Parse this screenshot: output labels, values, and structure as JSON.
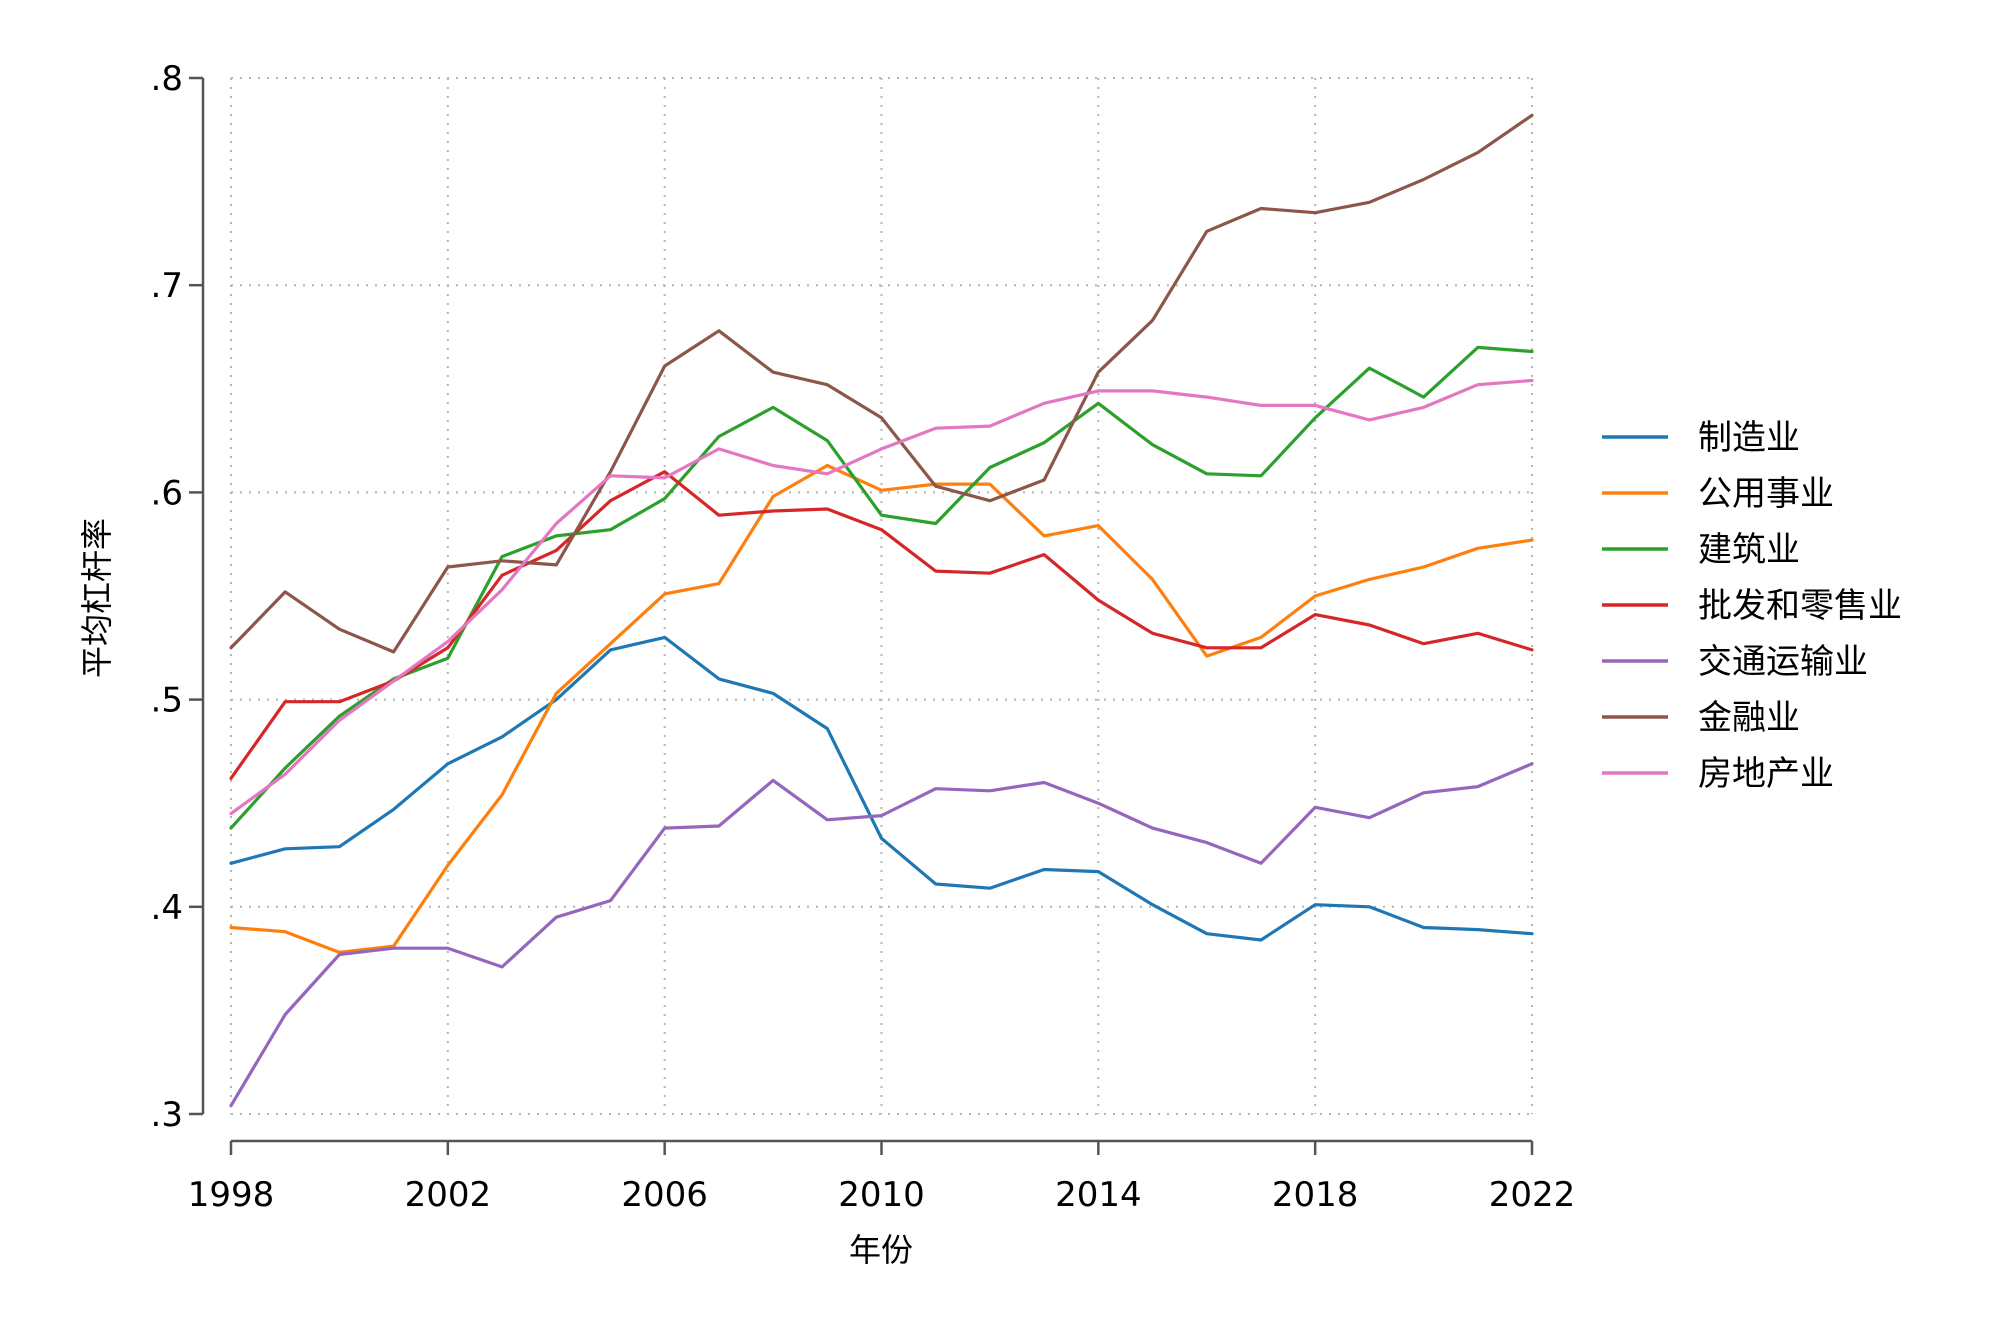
{
  "chart_data": {
    "type": "line",
    "xlabel": "年份",
    "ylabel": "平均杠杆率",
    "xlim": [
      1998,
      2022
    ],
    "ylim": [
      0.3,
      0.8
    ],
    "xticks": [
      1998,
      2002,
      2006,
      2010,
      2014,
      2018,
      2022
    ],
    "xtick_labels": [
      "1998",
      "2002",
      "2006",
      "2010",
      "2014",
      "2018",
      "2022"
    ],
    "yticks": [
      0.3,
      0.4,
      0.5,
      0.6,
      0.7,
      0.8
    ],
    "ytick_labels": [
      ".3",
      ".4",
      ".5",
      ".6",
      ".7",
      ".8"
    ],
    "grid": true,
    "legend_position": "right",
    "x": [
      1998,
      1999,
      2000,
      2001,
      2002,
      2003,
      2004,
      2005,
      2006,
      2007,
      2008,
      2009,
      2010,
      2011,
      2012,
      2013,
      2014,
      2015,
      2016,
      2017,
      2018,
      2019,
      2020,
      2021,
      2022
    ],
    "series": [
      {
        "name": "制造业",
        "color": "#1f77b4",
        "values": [
          0.421,
          0.428,
          0.429,
          0.447,
          0.469,
          0.482,
          0.5,
          0.524,
          0.53,
          0.51,
          0.503,
          0.486,
          0.433,
          0.411,
          0.409,
          0.418,
          0.417,
          0.401,
          0.387,
          0.384,
          0.401,
          0.4,
          0.39,
          0.389,
          0.387
        ]
      },
      {
        "name": "公用事业",
        "color": "#ff7f0e",
        "values": [
          0.39,
          0.388,
          0.378,
          0.381,
          0.42,
          0.454,
          0.503,
          0.527,
          0.551,
          0.556,
          0.598,
          0.613,
          0.601,
          0.604,
          0.604,
          0.579,
          0.584,
          0.558,
          0.521,
          0.53,
          0.55,
          0.558,
          0.564,
          0.573,
          0.577
        ]
      },
      {
        "name": "建筑业",
        "color": "#2ca02c",
        "values": [
          0.438,
          0.467,
          0.492,
          0.51,
          0.52,
          0.569,
          0.579,
          0.582,
          0.597,
          0.627,
          0.641,
          0.625,
          0.589,
          0.585,
          0.612,
          0.624,
          0.643,
          0.623,
          0.609,
          0.608,
          0.636,
          0.66,
          0.646,
          0.67,
          0.668
        ]
      },
      {
        "name": "批发和零售业",
        "color": "#d62728",
        "values": [
          0.462,
          0.499,
          0.499,
          0.509,
          0.525,
          0.56,
          0.572,
          0.596,
          0.61,
          0.589,
          0.591,
          0.592,
          0.582,
          0.562,
          0.561,
          0.57,
          0.548,
          0.532,
          0.525,
          0.525,
          0.541,
          0.536,
          0.527,
          0.532,
          0.524
        ]
      },
      {
        "name": "交通运输业",
        "color": "#9467bd",
        "values": [
          0.304,
          0.348,
          0.377,
          0.38,
          0.38,
          0.371,
          0.395,
          0.403,
          0.438,
          0.439,
          0.461,
          0.442,
          0.444,
          0.457,
          0.456,
          0.46,
          0.45,
          0.438,
          0.431,
          0.421,
          0.448,
          0.443,
          0.455,
          0.458,
          0.469
        ]
      },
      {
        "name": "金融业",
        "color": "#8c564b",
        "values": [
          0.525,
          0.552,
          0.534,
          0.523,
          0.564,
          0.567,
          0.565,
          0.61,
          0.661,
          0.678,
          0.658,
          0.652,
          0.636,
          0.603,
          0.596,
          0.606,
          0.658,
          0.683,
          0.726,
          0.737,
          0.735,
          0.74,
          0.751,
          0.764,
          0.782
        ]
      },
      {
        "name": "房地产业",
        "color": "#e377c2",
        "values": [
          0.445,
          0.464,
          0.49,
          0.509,
          0.528,
          0.553,
          0.585,
          0.608,
          0.607,
          0.621,
          0.613,
          0.609,
          0.621,
          0.631,
          0.632,
          0.643,
          0.649,
          0.649,
          0.646,
          0.642,
          0.642,
          0.635,
          0.641,
          0.652,
          0.654
        ]
      }
    ]
  }
}
